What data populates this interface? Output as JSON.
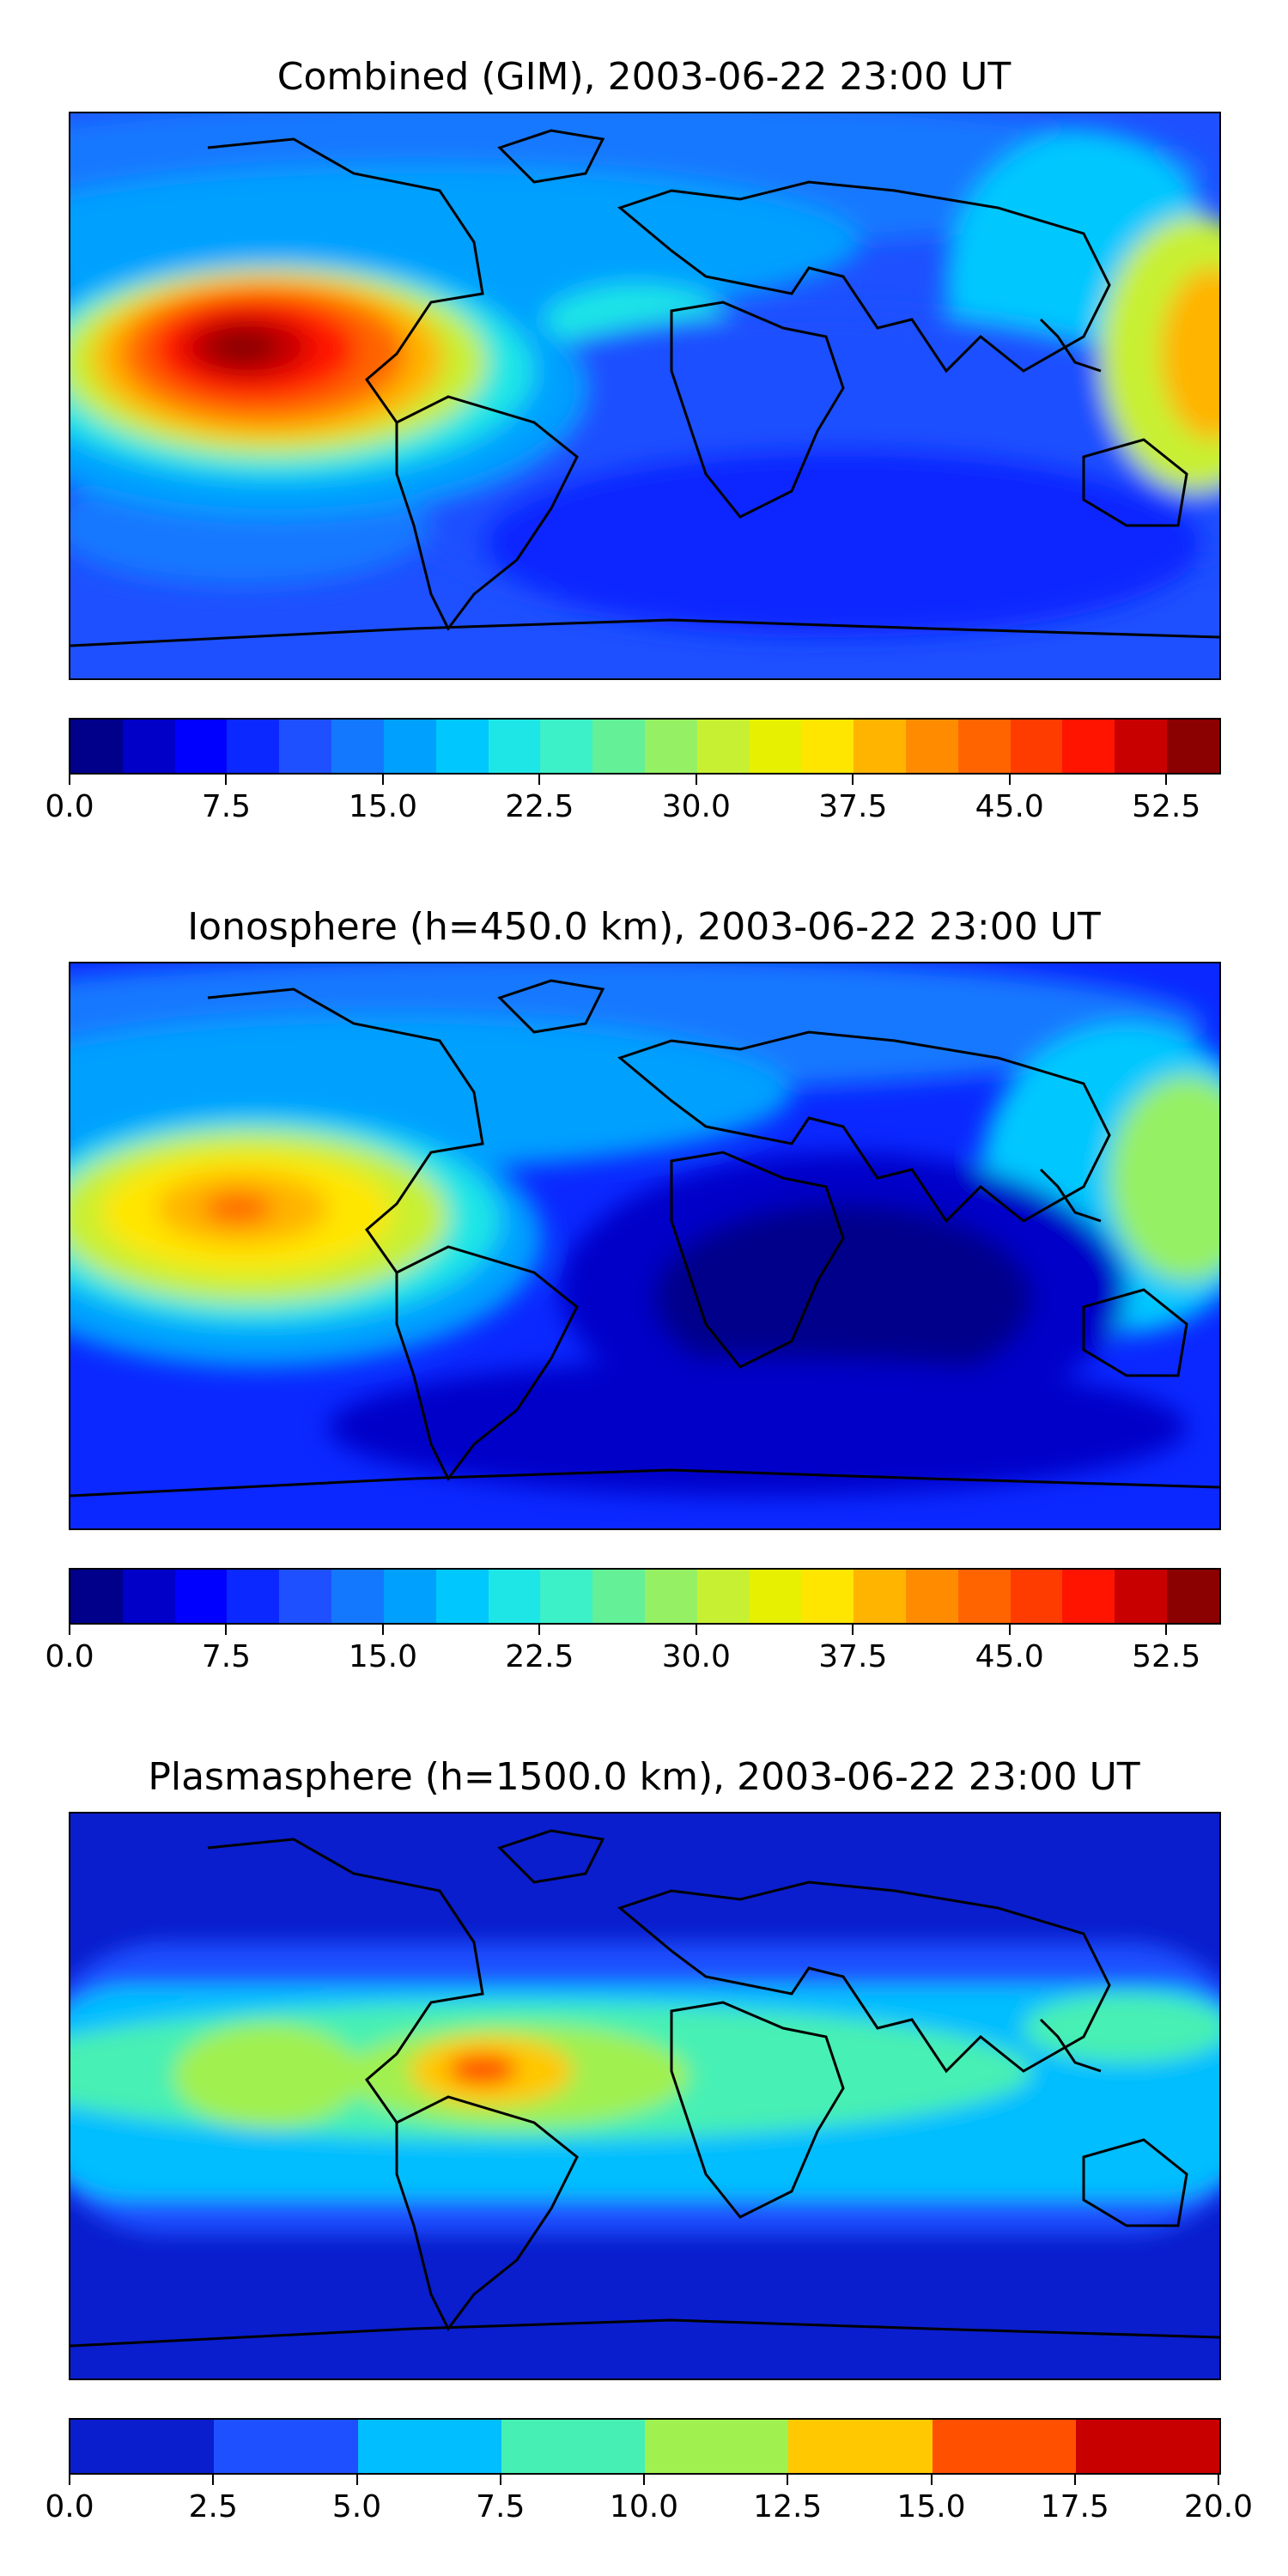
{
  "chart_data": [
    {
      "type": "heatmap",
      "title": "Combined (GIM), 2003-06-22 23:00 UT",
      "colorbar": {
        "min": 0.0,
        "max": 55.0,
        "step": 2.5,
        "tick_labels": [
          "0.0",
          "7.5",
          "15.0",
          "22.5",
          "30.0",
          "37.5",
          "45.0",
          "52.5"
        ],
        "tick_values": [
          0.0,
          7.5,
          15.0,
          22.5,
          30.0,
          37.5,
          45.0,
          52.5
        ],
        "colors": [
          "#00008b",
          "#0000c8",
          "#0000ff",
          "#0a28ff",
          "#1e50ff",
          "#1478ff",
          "#00a0ff",
          "#00c8ff",
          "#1ee6e6",
          "#3cf0c8",
          "#64f096",
          "#96f064",
          "#c8f032",
          "#e6f000",
          "#ffe600",
          "#ffb400",
          "#ff8c00",
          "#ff6400",
          "#ff3c00",
          "#ff1400",
          "#c80000",
          "#8b0000"
        ]
      },
      "features": [
        {
          "label": "peak over eastern Pacific",
          "lon": -100,
          "lat": 10,
          "value": 54
        },
        {
          "label": "secondary high western Pacific",
          "lon": 178,
          "lat": 10,
          "value": 37
        }
      ]
    },
    {
      "type": "heatmap",
      "title": "Ionosphere  (h=450.0 km), 2003-06-22 23:00 UT",
      "colorbar": {
        "min": 0.0,
        "max": 55.0,
        "step": 2.5,
        "tick_labels": [
          "0.0",
          "7.5",
          "15.0",
          "22.5",
          "30.0",
          "37.5",
          "45.0",
          "52.5"
        ],
        "tick_values": [
          0.0,
          7.5,
          15.0,
          22.5,
          30.0,
          37.5,
          45.0,
          52.5
        ],
        "colors": [
          "#00008b",
          "#0000c8",
          "#0000ff",
          "#0a28ff",
          "#1e50ff",
          "#1478ff",
          "#00a0ff",
          "#00c8ff",
          "#1ee6e6",
          "#3cf0c8",
          "#64f096",
          "#96f064",
          "#c8f032",
          "#e6f000",
          "#ffe600",
          "#ffb400",
          "#ff8c00",
          "#ff6400",
          "#ff3c00",
          "#ff1400",
          "#c80000",
          "#8b0000"
        ]
      },
      "features": [
        {
          "label": "peak over eastern Pacific",
          "lon": -105,
          "lat": 10,
          "value": 40
        },
        {
          "label": "low over Africa / Indian Ocean",
          "lon": 45,
          "lat": -15,
          "value": 2
        }
      ]
    },
    {
      "type": "heatmap",
      "title": "Plasmasphere (h=1500.0 km), 2003-06-22 23:00 UT",
      "colorbar": {
        "min": 0.0,
        "max": 20.0,
        "step": 2.5,
        "tick_labels": [
          "0.0",
          "2.5",
          "5.0",
          "7.5",
          "10.0",
          "12.5",
          "15.0",
          "17.5",
          "20.0"
        ],
        "tick_values": [
          0.0,
          2.5,
          5.0,
          7.5,
          10.0,
          12.5,
          15.0,
          17.5,
          20.0
        ],
        "colors": [
          "#0a1ecd",
          "#1e50ff",
          "#00beff",
          "#46f0b4",
          "#a0f050",
          "#ffc800",
          "#ff5000",
          "#c80000"
        ]
      },
      "features": [
        {
          "label": "peak over northern South America",
          "lon": -75,
          "lat": 8,
          "value": 17
        }
      ]
    }
  ]
}
